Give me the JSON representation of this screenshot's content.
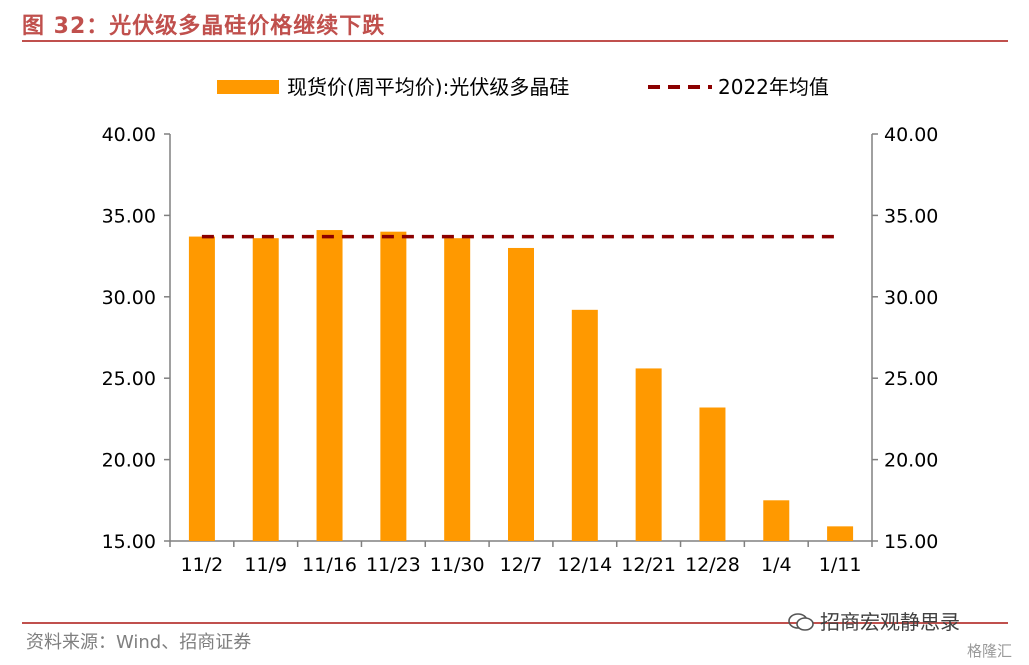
{
  "header": {
    "figure_title": "图 32：光伏级多晶硅价格继续下跌"
  },
  "footer": {
    "source": "资料来源：Wind、招商证券",
    "brand": "招商宏观静思录",
    "stamp": "格隆汇"
  },
  "colors": {
    "bar": "#ff9900",
    "avg_line": "#8b0000",
    "accent": "#c0504d",
    "axis": "#808080"
  },
  "chart_data": {
    "type": "bar",
    "categories": [
      "11/2",
      "11/9",
      "11/16",
      "11/23",
      "11/30",
      "12/7",
      "12/14",
      "12/21",
      "12/28",
      "1/4",
      "1/11"
    ],
    "series": [
      {
        "name": "现货价(周平均价):光伏级多晶硅",
        "type": "bar",
        "values": [
          33.7,
          33.6,
          34.1,
          34.0,
          33.6,
          33.0,
          29.2,
          25.6,
          23.2,
          17.5,
          15.9
        ]
      },
      {
        "name": "2022年均值",
        "type": "line",
        "style": "dashed",
        "values": [
          33.7,
          33.7,
          33.7,
          33.7,
          33.7,
          33.7,
          33.7,
          33.7,
          33.7,
          33.7,
          33.7
        ]
      }
    ],
    "ylim": [
      15,
      40
    ],
    "yticks": [
      "15.00",
      "20.00",
      "25.00",
      "30.00",
      "35.00",
      "40.00"
    ],
    "y2lim": [
      15,
      40
    ],
    "y2ticks": [
      "15.00",
      "20.00",
      "25.00",
      "30.00",
      "35.00",
      "40.00"
    ],
    "grid": false,
    "legend": "top"
  }
}
